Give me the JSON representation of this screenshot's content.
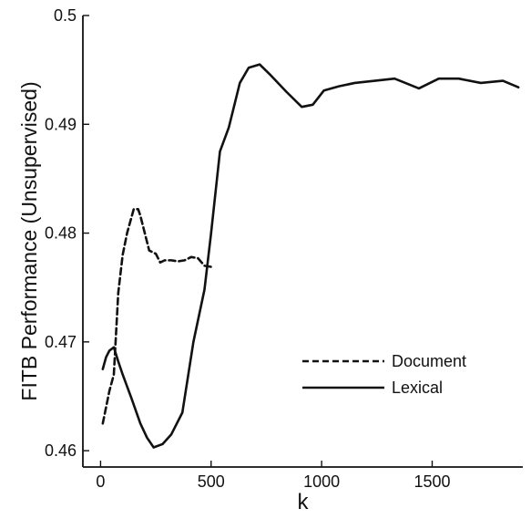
{
  "chart_data": {
    "type": "line",
    "title": "",
    "xlabel": "k",
    "ylabel": "FITB Performance (Unsupervised)",
    "xlim": [
      -80,
      1910
    ],
    "ylim": [
      0.4585,
      0.5
    ],
    "xticks": [
      0,
      500,
      1000,
      1500
    ],
    "yticks": [
      0.46,
      0.47,
      0.48,
      0.49,
      0.5
    ],
    "xtick_labels": [
      "0",
      "500",
      "1000",
      "1500"
    ],
    "ytick_labels": [
      "0.46",
      "0.47",
      "0.48",
      "0.49",
      "0.5"
    ],
    "grid": false,
    "legend": {
      "placement": "lower-right",
      "entries": [
        "Document",
        "Lexical"
      ]
    },
    "series": [
      {
        "name": "Document",
        "style": "dashed",
        "color": "#111111",
        "x": [
          10,
          25,
          40,
          60,
          80,
          100,
          120,
          150,
          170,
          180,
          200,
          220,
          250,
          270,
          290,
          320,
          350,
          380,
          410,
          440,
          470,
          500
        ],
        "y": [
          0.4625,
          0.464,
          0.4655,
          0.467,
          0.4745,
          0.478,
          0.48,
          0.4822,
          0.4822,
          0.4816,
          0.48,
          0.4784,
          0.4781,
          0.4773,
          0.4775,
          0.4775,
          0.4774,
          0.4775,
          0.4778,
          0.4777,
          0.477,
          0.4769
        ]
      },
      {
        "name": "Lexical",
        "style": "solid",
        "color": "#111111",
        "x": [
          10,
          25,
          40,
          60,
          80,
          100,
          140,
          180,
          210,
          240,
          280,
          320,
          370,
          420,
          470,
          500,
          540,
          580,
          630,
          670,
          720,
          770,
          840,
          910,
          960,
          1010,
          1080,
          1150,
          1240,
          1330,
          1440,
          1530,
          1620,
          1720,
          1820,
          1890
        ],
        "y": [
          0.4675,
          0.4686,
          0.4692,
          0.4695,
          0.4682,
          0.467,
          0.4648,
          0.4625,
          0.4612,
          0.4603,
          0.4606,
          0.4615,
          0.4635,
          0.47,
          0.4748,
          0.48,
          0.4875,
          0.4897,
          0.4938,
          0.4952,
          0.4955,
          0.4945,
          0.493,
          0.4916,
          0.4918,
          0.4931,
          0.4935,
          0.4938,
          0.494,
          0.4942,
          0.4933,
          0.4942,
          0.4942,
          0.4938,
          0.494,
          0.4934
        ]
      }
    ]
  }
}
